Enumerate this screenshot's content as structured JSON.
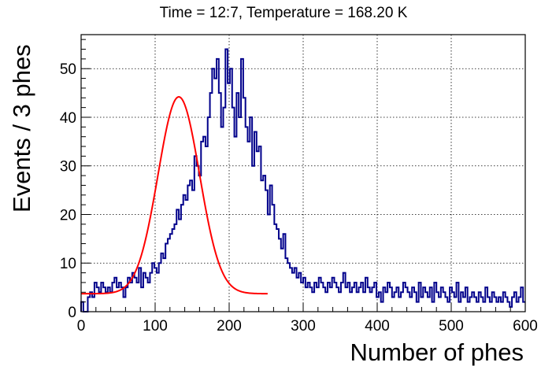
{
  "chart_data": {
    "type": "line",
    "title": "Time = 12:7, Temperature = 168.20 K",
    "xlabel": "Number of phes",
    "ylabel": "Events / 3 phes",
    "xlim": [
      0,
      600
    ],
    "ylim": [
      0,
      57
    ],
    "x_ticks": [
      0,
      100,
      200,
      300,
      400,
      500,
      600
    ],
    "y_ticks": [
      0,
      10,
      20,
      30,
      40,
      50
    ],
    "x_tick_labels": [
      "0",
      "100",
      "200",
      "300",
      "400",
      "500",
      "600"
    ],
    "y_tick_labels": [
      "0",
      "10",
      "20",
      "30",
      "40",
      "50"
    ],
    "grid": true,
    "legend": "none",
    "series": [
      {
        "kind": "histogram",
        "color": "#00008b",
        "bin_width": 3,
        "bin_start": 0,
        "values": [
          2,
          0,
          0,
          3,
          4,
          3,
          6,
          5,
          4,
          6,
          5,
          4,
          5,
          4,
          6,
          7,
          5,
          6,
          5,
          3,
          5,
          7,
          6,
          8,
          7,
          6,
          9,
          5,
          8,
          7,
          6,
          8,
          10,
          9,
          8,
          10,
          12,
          11,
          14,
          15,
          16,
          17,
          18,
          21,
          19,
          22,
          24,
          23,
          26,
          27,
          25,
          32,
          30,
          28,
          35,
          36,
          34,
          40,
          45,
          50,
          48,
          52,
          45,
          38,
          42,
          54,
          47,
          50,
          42,
          36,
          45,
          40,
          52,
          44,
          38,
          35,
          40,
          30,
          37,
          33,
          34,
          27,
          28,
          25,
          20,
          26,
          22,
          18,
          17,
          15,
          13,
          16,
          11,
          10,
          9,
          8,
          9,
          7,
          8,
          6,
          7,
          5,
          6,
          5,
          4,
          6,
          5,
          7,
          6,
          5,
          4,
          6,
          5,
          7,
          6,
          5,
          4,
          6,
          8,
          5,
          6,
          4,
          5,
          6,
          4,
          5,
          6,
          4,
          7,
          5,
          4,
          5,
          6,
          3,
          4,
          2,
          5,
          4,
          6,
          5,
          3,
          4,
          5,
          3,
          4,
          6,
          5,
          4,
          3,
          5,
          4,
          2,
          6,
          3,
          5,
          4,
          3,
          5,
          2,
          6,
          4,
          3,
          5,
          4,
          3,
          2,
          5,
          4,
          3,
          6,
          2,
          4,
          3,
          5,
          2,
          3,
          4,
          3,
          2,
          4,
          3,
          2,
          5,
          3,
          2,
          4,
          3,
          2,
          3,
          2,
          4,
          3,
          2,
          1,
          3,
          4,
          2,
          3,
          5,
          2
        ]
      },
      {
        "kind": "fit-curve",
        "color": "#ff0000",
        "model": "gaussian",
        "amplitude": 40.5,
        "mean": 132,
        "sigma": 28,
        "baseline": 3.7,
        "x_range": [
          0,
          252
        ]
      }
    ]
  }
}
